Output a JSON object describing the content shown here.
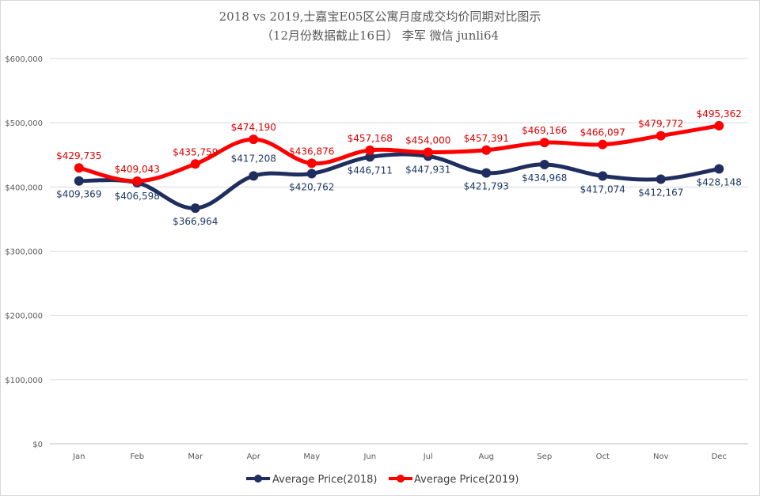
{
  "chart_data": {
    "type": "line",
    "title_line1": "2018 vs 2019,士嘉宝E05区公寓月度成交均价同期对比图示",
    "title_line2": "（12月份数据截止16日） 李军  微信 junli64",
    "categories": [
      "Jan",
      "Feb",
      "Mar",
      "Apr",
      "May",
      "Jun",
      "Jul",
      "Aug",
      "Sep",
      "Oct",
      "Nov",
      "Dec"
    ],
    "ylim": [
      0,
      600000
    ],
    "yticks": [
      0,
      100000,
      200000,
      300000,
      400000,
      500000,
      600000
    ],
    "ytick_labels": [
      "$0",
      "$100,000",
      "$200,000",
      "$300,000",
      "$400,000",
      "$500,000",
      "$600,000"
    ],
    "grid": true,
    "legend_position": "bottom",
    "series": [
      {
        "name": "Average Price(2018)",
        "color": "#1f2e5e",
        "values": [
          409369,
          406598,
          366964,
          417208,
          420762,
          446711,
          447931,
          421793,
          434968,
          417074,
          412167,
          428148
        ],
        "labels": [
          "$409,369",
          "$406,598",
          "$366,964",
          "$417,208",
          "$420,762",
          "$446,711",
          "$447,931",
          "$421,793",
          "$434,968",
          "$417,074",
          "$412,167",
          "$428,148"
        ]
      },
      {
        "name": "Average Price(2019)",
        "color": "#ff0000",
        "values": [
          429735,
          409043,
          435759,
          474190,
          436876,
          457168,
          454000,
          457391,
          469166,
          466097,
          479772,
          495362
        ],
        "labels": [
          "$429,735",
          "$409,043",
          "$435,759",
          "$474,190",
          "$436,876",
          "$457,168",
          "$454,000",
          "$457,391",
          "$469,166",
          "$466,097",
          "$479,772",
          "$495,362"
        ]
      }
    ]
  }
}
